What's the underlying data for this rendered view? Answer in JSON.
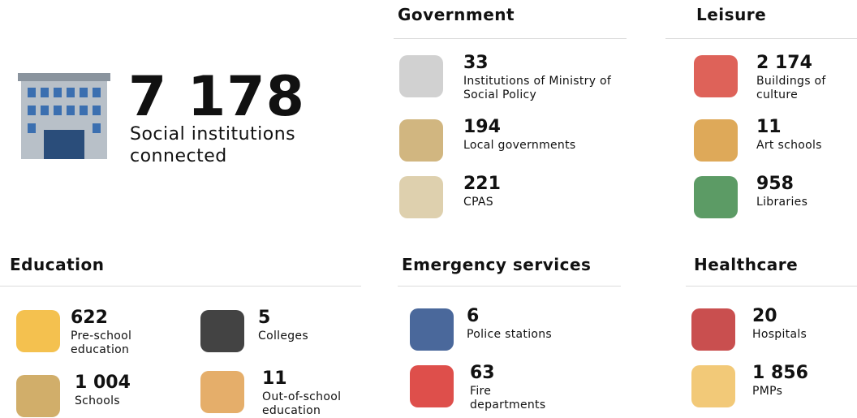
{
  "hero": {
    "value": "7 178",
    "label": "Social institutions connected"
  },
  "sections": [
    {
      "title": "Government",
      "items": [
        {
          "value": "33",
          "label": "Institutions of Ministry of Social Policy"
        },
        {
          "value": "194",
          "label": "Local governments"
        },
        {
          "value": "221",
          "label": "CPAS"
        }
      ]
    },
    {
      "title": "Leisure",
      "items": [
        {
          "value": "2 174",
          "label": "Buildings of culture"
        },
        {
          "value": "11",
          "label": "Art schools"
        },
        {
          "value": "958",
          "label": "Libraries"
        }
      ]
    },
    {
      "title": "Education",
      "items": [
        {
          "value": "622",
          "label": "Pre-school education"
        },
        {
          "value": "5",
          "label": "Colleges"
        },
        {
          "value": "1 004",
          "label": "Schools"
        },
        {
          "value": "11",
          "label": "Out-of-school education"
        }
      ]
    },
    {
      "title": "Emergency services",
      "items": [
        {
          "value": "6",
          "label": "Police stations"
        },
        {
          "value": "63",
          "label": "Fire departments"
        }
      ]
    },
    {
      "title": "Healthcare",
      "items": [
        {
          "value": "20",
          "label": "Hospitals"
        },
        {
          "value": "1 856",
          "label": "PMPs"
        }
      ]
    }
  ]
}
